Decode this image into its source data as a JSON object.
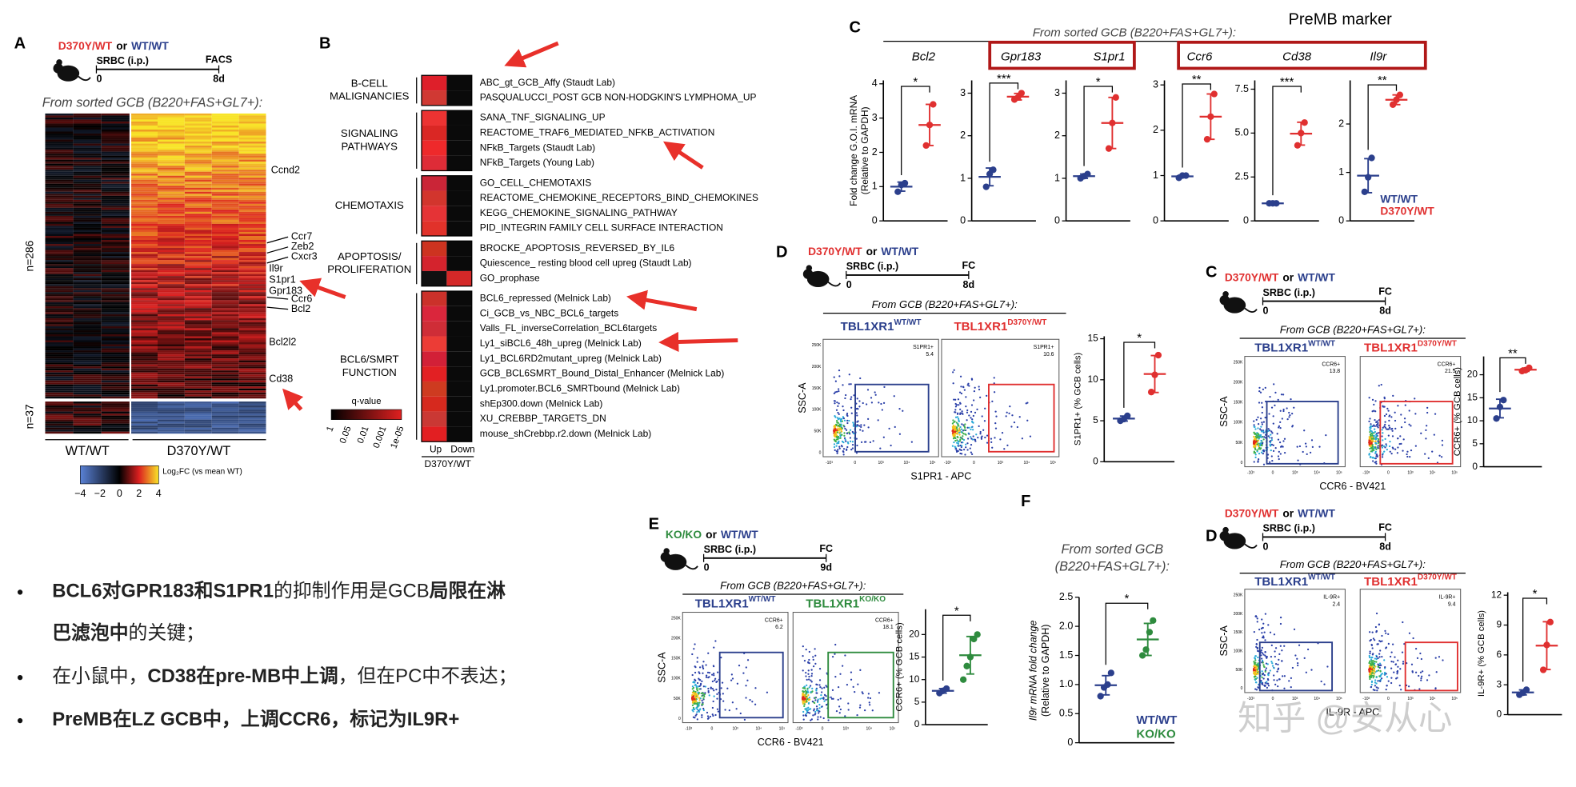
{
  "flow_axes": {
    "y": [
      "0",
      "50K",
      "100K",
      "150K",
      "200K",
      "250K"
    ],
    "x": [
      "-10³",
      "0",
      "10³",
      "10⁴",
      "10⁵"
    ]
  },
  "panel_a": {
    "letter": "A",
    "genotype_mut": "D370Y/WT",
    "or": "or",
    "genotype_wt": "WT/WT",
    "treatment": "SRBC (i.p.)",
    "readout": "FACS",
    "t0": "0",
    "t1": "8d",
    "colors": [
      "#2b3f8c",
      "#e03030"
    ],
    "subtitle": "From sorted GCB (B220+FAS+GL7+):",
    "genes": [
      "Ccnd2",
      "Ccr7",
      "Zeb2",
      "Cxcr3",
      "Il9r",
      "S1pr1",
      "Gpr183",
      "Ccr6",
      "Bcl2",
      "Bcl2l2",
      "Cd38"
    ],
    "n_up": "n=286",
    "n_down": "n=37",
    "col_wt": "WT/WT",
    "col_mut": "D370Y/WT",
    "scale_ticks": [
      "−4",
      "−2",
      "0",
      "2",
      "4"
    ],
    "scale_label": "Log₂FC (vs mean WT)"
  },
  "panel_b": {
    "letter": "B",
    "groups": [
      {
        "name": [
          "B-CELL",
          "MALIGNANCIES"
        ],
        "sets": [
          "ABC_gt_GCB_Affy (Staudt Lab)",
          "PASQUALUCCI_POST GCB NON-HODGKIN'S LYMPHOMA_UP"
        ]
      },
      {
        "name": [
          "SIGNALING",
          "PATHWAYS"
        ],
        "sets": [
          "SANA_TNF_SIGNALING_UP",
          "REACTOME_TRAF6_MEDIATED_NFKB_ACTIVATION",
          "NFkB_Targets (Staudt Lab)",
          "NFkB_Targets (Young Lab)"
        ]
      },
      {
        "name": [
          "CHEMOTAXIS"
        ],
        "sets": [
          "GO_CELL_CHEMOTAXIS",
          "REACTOME_CHEMOKINE_RECEPTORS_BIND_CHEMOKINES",
          "KEGG_CHEMOKINE_SIGNALING_PATHWAY",
          "PID_INTEGRIN FAMILY CELL SURFACE INTERACTION"
        ]
      },
      {
        "name": [
          "APOPTOSIS/",
          "PROLIFERATION"
        ],
        "sets": [
          "BROCKE_APOPTOSIS_REVERSED_BY_IL6",
          "Quiescence_ resting blood cell upreg (Staudt Lab)",
          "GO_prophase"
        ]
      },
      {
        "name": [
          "BCL6/SMRT",
          "FUNCTION"
        ],
        "sets": [
          "BCL6_repressed (Melnick Lab)",
          "Ci_GCB_vs_NBC_BCL6_targets",
          "Valls_FL_inverseCorrelation_BCL6targets",
          "Ly1_siBCL6_48h_upreg (Melnick Lab)",
          "Ly1_BCL6RD2mutant_upreg (Melnick Lab)",
          "GCB_BCL6SMRT_Bound_Distal_Enhancer (Melnick Lab)",
          "Ly1.promoter.BCL6_SMRTbound (Melnick Lab)",
          "shEp300.down (Melnick Lab)",
          "XU_CREBBP_TARGETS_DN",
          "mouse_shCrebbp.r2.down (Melnick Lab)"
        ]
      }
    ],
    "scale_title": "q-value",
    "scale_ticks": [
      "1",
      "0.05",
      "0.01",
      "0.001",
      "1e-05"
    ],
    "col_up": "Up",
    "col_down": "Down",
    "genotype": "D370Y/WT"
  },
  "panel_c": {
    "letter": "C",
    "subtitle": "From sorted GCB (B220+FAS+GL7+):",
    "note": "PreMB marker",
    "ylabel": [
      "Fold change G.O.I. mRNA",
      "(Relative to GAPDH)"
    ],
    "legend": [
      {
        "name": "WT/WT",
        "color": "#2b3f8c"
      },
      {
        "name": "D370Y/WT",
        "color": "#e03030"
      }
    ],
    "plots": [
      {
        "gene": "Bcl2",
        "sig": "*",
        "ylim": [
          0,
          4.1
        ],
        "yticks": [
          0,
          1,
          2,
          3,
          4
        ],
        "groups": [
          [
            0.85,
            1.05,
            1.1
          ],
          [
            2.2,
            2.8,
            3.4
          ]
        ]
      },
      {
        "gene": "Gpr183",
        "sig": "***",
        "ylim": [
          0,
          3.3
        ],
        "yticks": [
          0,
          1,
          2,
          3
        ],
        "groups": [
          [
            0.8,
            1.1,
            1.2
          ],
          [
            2.85,
            2.9,
            3.0
          ]
        ]
      },
      {
        "gene": "S1pr1",
        "sig": "*",
        "ylim": [
          0,
          3.3
        ],
        "yticks": [
          0,
          1,
          2,
          3
        ],
        "groups": [
          [
            1.0,
            1.05,
            1.1
          ],
          [
            1.7,
            2.3,
            2.9
          ]
        ]
      },
      {
        "gene": "Ccr6",
        "sig": "**",
        "ylim": [
          0,
          3.1
        ],
        "yticks": [
          0,
          1,
          2,
          3
        ],
        "groups": [
          [
            0.95,
            1.0,
            1.0
          ],
          [
            1.8,
            2.3,
            2.8
          ]
        ]
      },
      {
        "gene": "Cd38",
        "sig": "***",
        "ylim": [
          0,
          8
        ],
        "yticks": [
          0,
          {
            "value": 2.5,
            "label": "2.5"
          },
          {
            "value": 5,
            "label": "5.0"
          },
          {
            "value": 7.5,
            "label": "7.5"
          }
        ],
        "groups": [
          [
            1.0,
            1.0,
            1.0
          ],
          [
            4.3,
            5.0,
            5.6
          ]
        ]
      },
      {
        "gene": "Il9r",
        "sig": "**",
        "ylim": [
          0,
          2.9
        ],
        "yticks": [
          0,
          1,
          2
        ],
        "groups": [
          [
            0.6,
            0.9,
            1.3
          ],
          [
            2.4,
            2.5,
            2.6
          ]
        ]
      }
    ]
  },
  "panel_d": {
    "letter": "D",
    "genotype_mut": "D370Y/WT",
    "or": "or",
    "genotype_wt": "WT/WT",
    "treatment": "SRBC (i.p.)",
    "readout": "FC",
    "t0": "0",
    "t1": "8d",
    "colors": [
      "#2b3f8c",
      "#e03030"
    ],
    "subtitle": "From GCB (B220+FAS+GL7+):",
    "samples": [
      {
        "base": "TBL1XR1",
        "sup": "WT/WT",
        "gate_name": "S1PR1+",
        "gate_value": "5.4"
      },
      {
        "base": "TBL1XR1",
        "sup": "D370Y/WT",
        "gate_name": "S1PR1+",
        "gate_value": "10.6"
      }
    ],
    "yaxis": "SSC-A",
    "xaxis": "S1PR1 - APC",
    "dot": {
      "ylabel": "S1PR1+ (% GCB cells)",
      "sig": "*",
      "ylim": [
        0,
        15.3
      ],
      "yticks": [
        0,
        5,
        10,
        15
      ],
      "groups": [
        [
          5.0,
          5.2,
          5.6
        ],
        [
          8.5,
          10.6,
          13.0
        ]
      ]
    }
  },
  "panel_c2": {
    "letter": "C",
    "genotype_mut": "D370Y/WT",
    "or": "or",
    "genotype_wt": "WT/WT",
    "treatment": "SRBC (i.p.)",
    "readout": "FC",
    "t0": "0",
    "t1": "8d",
    "colors": [
      "#2b3f8c",
      "#e03030"
    ],
    "subtitle": "From GCB (B220+FAS+GL7+):",
    "samples": [
      {
        "base": "TBL1XR1",
        "sup": "WT/WT",
        "gate_name": "CCR6+",
        "gate_value": "13.8"
      },
      {
        "base": "TBL1XR1",
        "sup": "D370Y/WT",
        "gate_name": "CCR6+",
        "gate_value": "21.5"
      }
    ],
    "yaxis": "SSC-A",
    "xaxis": "CCR6 - BV421",
    "dot": {
      "ylabel": "CCR6+ (% GCB cells)",
      "sig": "**",
      "ylim": [
        0,
        24
      ],
      "yticks": [
        0,
        5,
        10,
        15,
        20
      ],
      "groups": [
        [
          10.5,
          13.0,
          14.5
        ],
        [
          20.8,
          21.0,
          21.5
        ]
      ]
    }
  },
  "panel_e": {
    "letter": "E",
    "genotype_mut": "KO/KO",
    "or": "or",
    "genotype_wt": "WT/WT",
    "treatment": "SRBC (i.p.)",
    "readout": "FC",
    "t0": "0",
    "t1": "9d",
    "colors": [
      "#2b3f8c",
      "#2e8b3e"
    ],
    "subtitle": "From GCB (B220+FAS+GL7+):",
    "samples": [
      {
        "base": "TBL1XR1",
        "sup": "WT/WT",
        "gate_name": "CCR6+",
        "gate_value": "6.2"
      },
      {
        "base": "TBL1XR1",
        "sup": "KO/KO",
        "gate_name": "CCR6+",
        "gate_value": "18.1"
      }
    ],
    "yaxis": "SSC-A",
    "xaxis": "CCR6 - BV421",
    "dot": {
      "ylabel": "CCR6+ (% GCB cells)",
      "sig": "*",
      "ylim": [
        0,
        25.6
      ],
      "yticks": [
        0,
        5,
        10,
        15,
        20
      ],
      "groups": [
        [
          7.0,
          7.5,
          8.0
        ],
        [
          10,
          13,
          15,
          19,
          20
        ]
      ]
    }
  },
  "panel_f": {
    "letter": "F",
    "subtitle": [
      "From sorted GCB",
      "(B220+FAS+GL7+):"
    ],
    "ylabel": [
      "Il9r mRNA fold change",
      "(Relative to GAPDH)"
    ],
    "colors": [
      "#2b3f8c",
      "#2e8b3e"
    ],
    "legend": [
      "WT/WT",
      "KO/KO"
    ],
    "dot": {
      "sig": "*",
      "ylim": [
        0,
        2.5
      ],
      "yticks": [
        0,
        0.5,
        {
          "value": 1,
          "label": "1.0"
        },
        1.5,
        {
          "value": 2,
          "label": "2.0"
        },
        2.5
      ],
      "groups": [
        [
          0.8,
          0.95,
          1.0,
          1.2
        ],
        [
          1.5,
          1.6,
          1.9,
          2.1
        ]
      ]
    }
  },
  "panel_d2": {
    "letter": "D",
    "genotype_mut": "D370Y/WT",
    "or": "or",
    "genotype_wt": "WT/WT",
    "treatment": "SRBC (i.p.)",
    "readout": "FC",
    "t0": "0",
    "t1": "8d",
    "colors": [
      "#2b3f8c",
      "#e03030"
    ],
    "subtitle": "From GCB (B220+FAS+GL7+):",
    "samples": [
      {
        "base": "TBL1XR1",
        "sup": "WT/WT",
        "gate_name": "IL-9R+",
        "gate_value": "2.4"
      },
      {
        "base": "TBL1XR1",
        "sup": "D370Y/WT",
        "gate_name": "IL-9R+",
        "gate_value": "9.4"
      }
    ],
    "yaxis": "SSC-A",
    "xaxis": "IL-9R - APC",
    "dot": {
      "ylabel": "IL-9R+ (% GCB cells)",
      "sig": "*",
      "ylim": [
        0,
        12.3
      ],
      "yticks": [
        0,
        3,
        6,
        9,
        12
      ],
      "groups": [
        [
          2.0,
          2.2,
          2.5
        ],
        [
          4.5,
          7.0,
          9.3
        ]
      ]
    }
  },
  "bullets": [
    [
      [
        {
          "t": "BCL6对GPR183和S1PR1",
          "b": true
        },
        {
          "t": "的抑制作用是GCB",
          "b": false
        },
        {
          "t": "局限在淋",
          "b": true
        }
      ],
      [
        {
          "t": "巴滤泡中",
          "b": true
        },
        {
          "t": "的关键；",
          "b": false
        }
      ]
    ],
    [
      [
        {
          "t": "在小鼠中，",
          "b": false
        },
        {
          "t": "CD38在pre-MB中上调",
          "b": true
        },
        {
          "t": "，但在PC中不表达；",
          "b": false
        }
      ]
    ],
    [
      [
        {
          "t": "PreMB在LZ GCB中，上调CCR6，标记为IL9R+",
          "b": true
        }
      ]
    ]
  ],
  "watermark": "知乎 @安从心"
}
